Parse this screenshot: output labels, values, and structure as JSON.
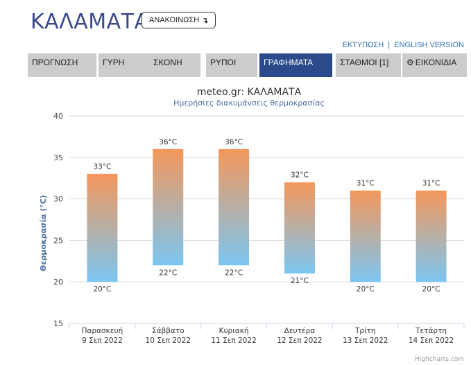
{
  "header": {
    "city": "ΚΑΛΑΜΑΤΑ",
    "announce_label": "ΑΝΑΚΟΙΝΩΣΗ",
    "announce_arrow": "↴"
  },
  "top_links": {
    "print": "ΕΚΤΥΠΩΣΗ",
    "separator": "|",
    "english": "ENGLISH VERSION"
  },
  "tabs": [
    {
      "label": "ΠΡΟΓΝΩΣΗ",
      "active": false
    },
    {
      "label": "ΓΥΡΗ",
      "active": false
    },
    {
      "label": "ΣΚΟΝΗ",
      "active": false
    },
    {
      "label": "ΡΥΠΟΙ",
      "active": false
    },
    {
      "label": "ΓΡΑΦΗΜΑΤΑ",
      "active": true
    },
    {
      "label": "ΣΤΑΘΜΟΙ [1]",
      "active": false
    },
    {
      "label": "ΕΙΚΟΝΙΔΙΑ",
      "active": false,
      "icon": "gear-icon"
    }
  ],
  "colors": {
    "tab_bg": "#cccccc",
    "tab_active_bg": "#2a4a8c",
    "title": "#3b4a8c",
    "bar_top": "#f4975a",
    "bar_bottom": "#7cc6f2",
    "grid": "#d8d8d8",
    "axis_title": "#4a6ea0"
  },
  "chart_data": {
    "type": "columnrange",
    "title": "meteo.gr: ΚΑΛΑΜΑΤΑ",
    "subtitle": "Ημερήσιες διακυμάνσεις θερμοκρασίας",
    "ylabel": "Θερμοκρασία (°C)",
    "ylim": [
      15,
      40
    ],
    "yticks": [
      15,
      20,
      25,
      30,
      35,
      40
    ],
    "categories": [
      {
        "day": "Παρασκευή",
        "date": "9 Σεπ 2022"
      },
      {
        "day": "Σάββατο",
        "date": "10 Σεπ 2022"
      },
      {
        "day": "Κυριακή",
        "date": "11 Σεπ 2022"
      },
      {
        "day": "Δευτέρα",
        "date": "12 Σεπ 2022"
      },
      {
        "day": "Τρίτη",
        "date": "13 Σεπ 2022"
      },
      {
        "day": "Τετάρτη",
        "date": "14 Σεπ 2022"
      }
    ],
    "max": [
      33,
      36,
      36,
      32,
      31,
      31
    ],
    "min": [
      20,
      22,
      22,
      21,
      20,
      20
    ],
    "max_labels": [
      "33°C",
      "36°C",
      "36°C",
      "32°C",
      "31°C",
      "31°C"
    ],
    "min_labels": [
      "20°C",
      "22°C",
      "22°C",
      "21°C",
      "20°C",
      "20°C"
    ],
    "grid": true,
    "legend": false,
    "credits": "Highcharts.com"
  }
}
